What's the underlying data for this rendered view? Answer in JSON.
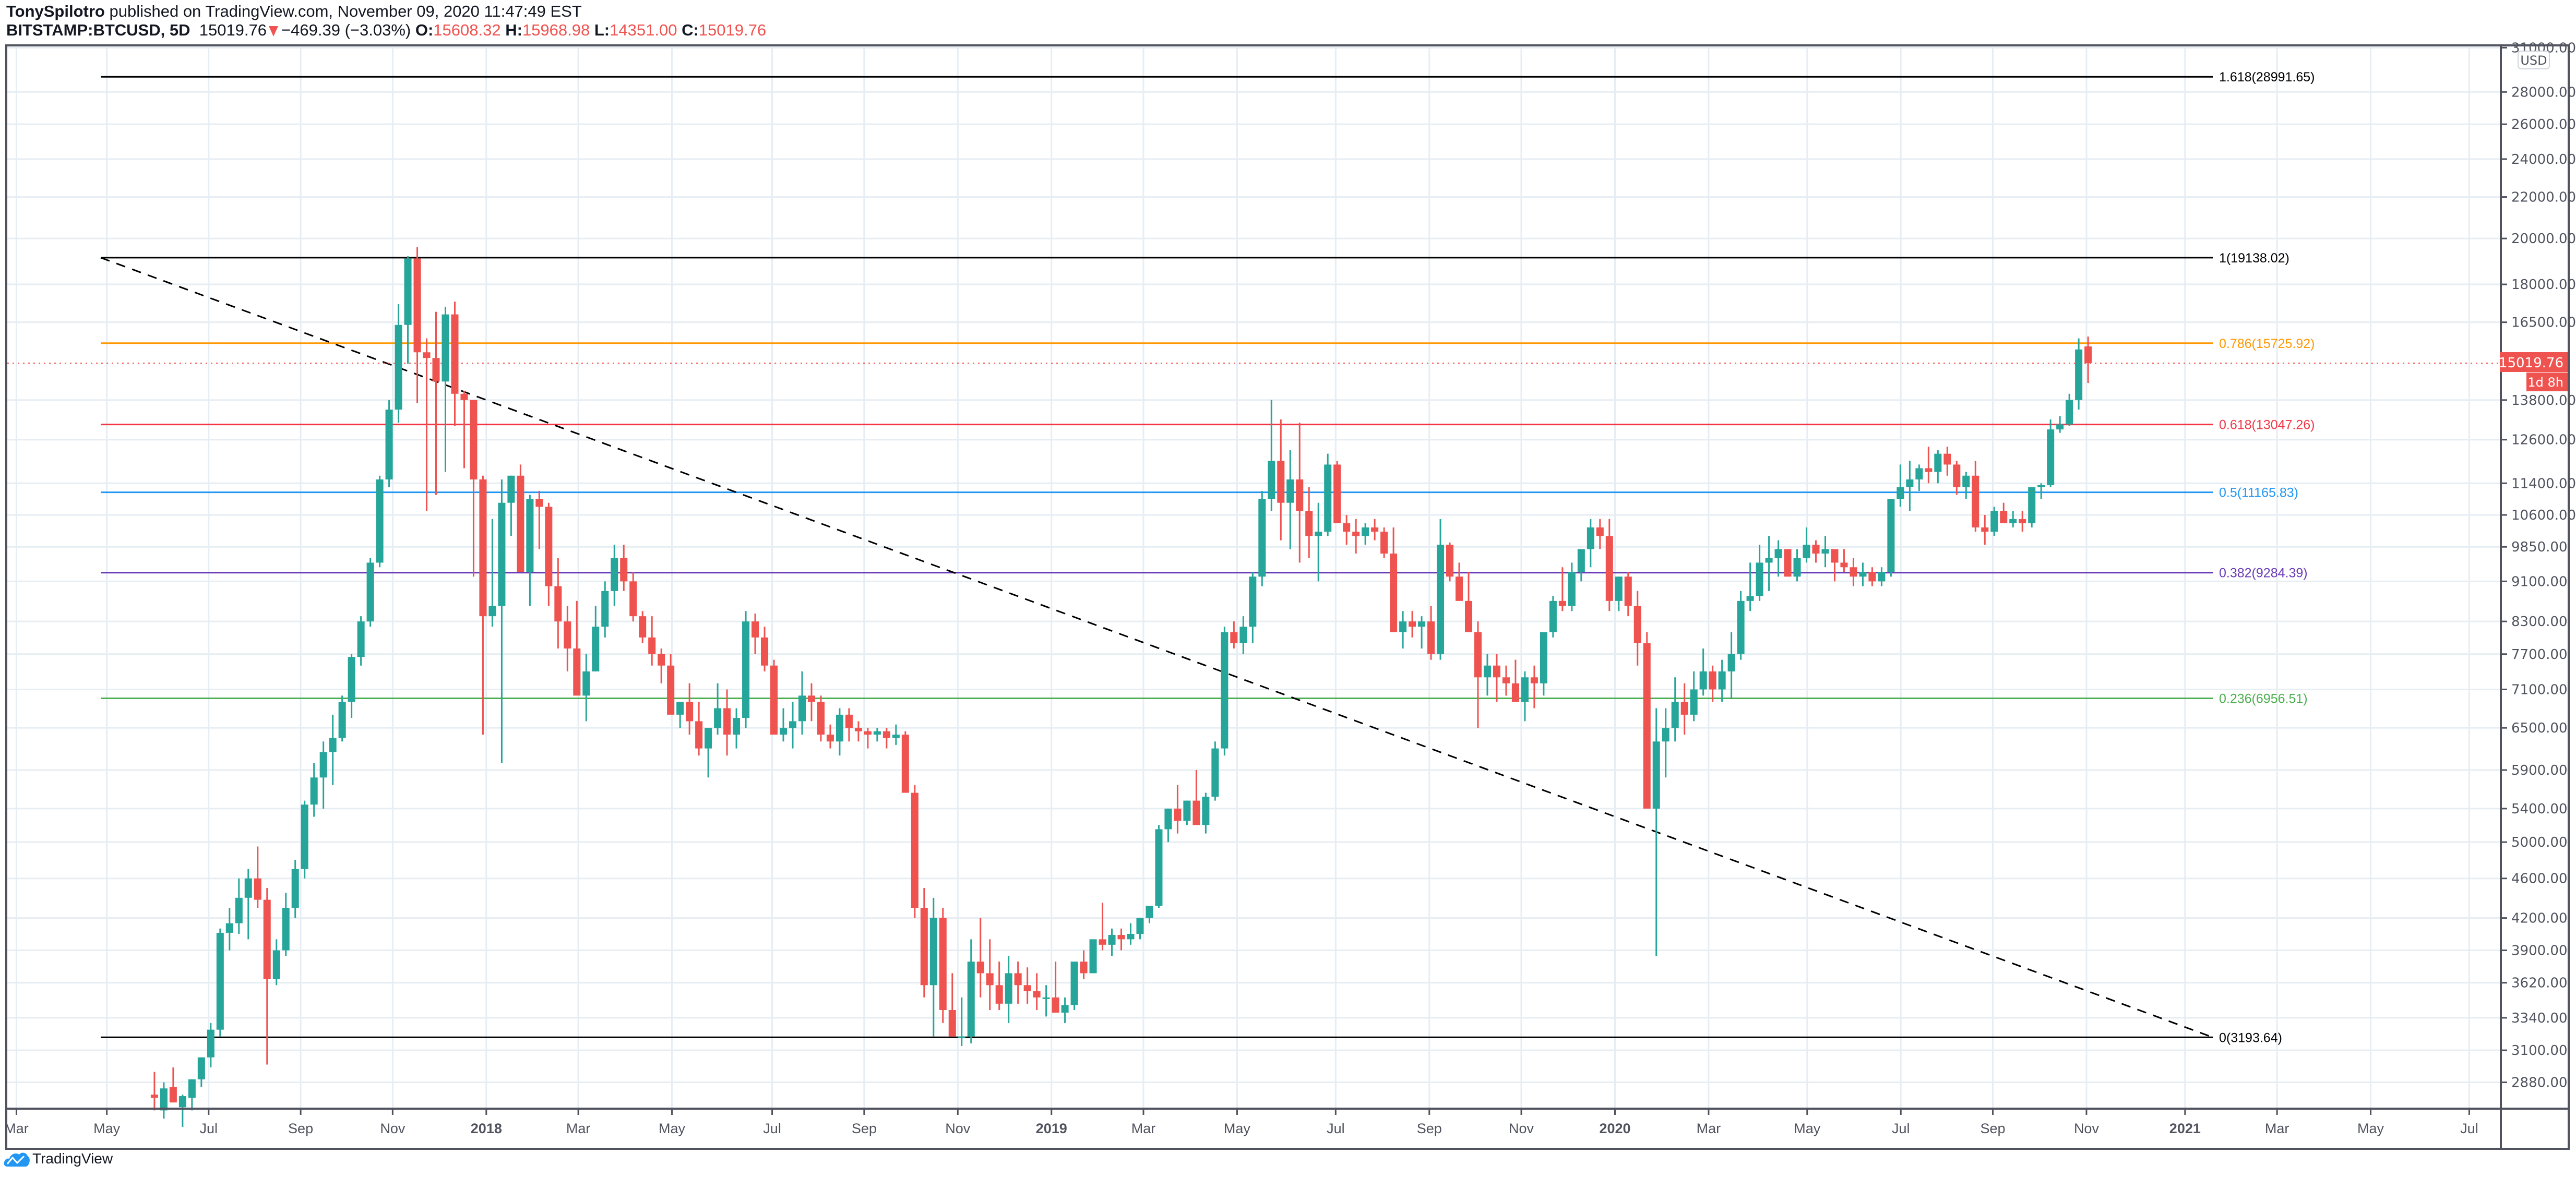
{
  "header": {
    "author": "TonySpilotro",
    "published_text": "published on TradingView.com, November 09, 2020 11:47:49 EST",
    "symbol": "BITSTAMP:BTCUSD, 5D",
    "last_price": "15019.76",
    "change": "−469.39 (−3.03%)",
    "open_label": "O:",
    "open": "15608.32",
    "high_label": "H:",
    "high": "15968.98",
    "low_label": "L:",
    "low": "14351.00",
    "close_label": "C:",
    "close": "15019.76"
  },
  "price_axis": {
    "currency": "USD",
    "current_price_tag": "15019.76",
    "countdown_tag": "1d 8h",
    "ticks": [
      "31000.00",
      "28000.00",
      "26000.00",
      "24000.00",
      "22000.00",
      "20000.00",
      "18000.00",
      "16500.00",
      "13800.00",
      "12600.00",
      "11400.00",
      "10600.00",
      "9850.00",
      "9100.00",
      "8300.00",
      "7700.00",
      "7100.00",
      "6500.00",
      "5900.00",
      "5400.00",
      "5000.00",
      "4600.00",
      "4200.00",
      "3900.00",
      "3620.00",
      "3340.00",
      "3100.00",
      "2880.00"
    ]
  },
  "time_axis": {
    "labels": [
      "Mar",
      "May",
      "Jul",
      "Sep",
      "Nov",
      "2018",
      "Mar",
      "May",
      "Jul",
      "Sep",
      "Nov",
      "2019",
      "Mar",
      "May",
      "Jul",
      "Sep",
      "Nov",
      "2020",
      "Mar",
      "May",
      "Jul",
      "Sep",
      "Nov",
      "2021",
      "Mar",
      "May",
      "Jul"
    ]
  },
  "fib_levels": [
    {
      "label": "1.618(28991.65)",
      "color": "#000000"
    },
    {
      "label": "1(19138.02)",
      "color": "#000000"
    },
    {
      "label": "0.786(15725.92)",
      "color": "#ff9800"
    },
    {
      "label": "0.618(13047.26)",
      "color": "#f23645"
    },
    {
      "label": "0.5(11165.83)",
      "color": "#2196f3"
    },
    {
      "label": "0.382(9284.39)",
      "color": "#673ab7"
    },
    {
      "label": "0.236(6956.51)",
      "color": "#4caf50"
    },
    {
      "label": "0(3193.64)",
      "color": "#000000"
    }
  ],
  "footer": {
    "brand": "TradingView"
  },
  "colors": {
    "up": "#26a69a",
    "down": "#ef5350",
    "grid": "#e6edf3",
    "axis": "#50535e",
    "brand": "#2962ff"
  },
  "chart_data": {
    "type": "candlestick",
    "title": "BITSTAMP:BTCUSD, 5D",
    "xlabel": "",
    "ylabel": "USD",
    "y_scale": "log",
    "ylim": [
      2750,
      31500
    ],
    "x_range": [
      "2017-03",
      "2021-07"
    ],
    "grid": true,
    "legend": "none",
    "last": {
      "open": 15608.32,
      "high": 15968.98,
      "low": 14351.0,
      "close": 15019.76,
      "change": -469.39,
      "change_pct": -3.03
    },
    "fibonacci_retracement": [
      {
        "level": 1.618,
        "price": 28991.65
      },
      {
        "level": 1.0,
        "price": 19138.02
      },
      {
        "level": 0.786,
        "price": 15725.92
      },
      {
        "level": 0.618,
        "price": 13047.26
      },
      {
        "level": 0.5,
        "price": 11165.83
      },
      {
        "level": 0.382,
        "price": 9284.39
      },
      {
        "level": 0.236,
        "price": 6956.51
      },
      {
        "level": 0.0,
        "price": 3193.64
      }
    ],
    "trendline": {
      "style": "dashed",
      "from": {
        "date": "2017-05",
        "price": 19138
      },
      "to": {
        "date": "2021-01",
        "price": 3193.64
      }
    },
    "candles_approx": [
      [
        2800,
        2950,
        2700,
        2780
      ],
      [
        2700,
        2880,
        2650,
        2840
      ],
      [
        2850,
        2980,
        2750,
        2750
      ],
      [
        2720,
        2800,
        2600,
        2790
      ],
      [
        2780,
        2900,
        2700,
        2900
      ],
      [
        2900,
        3050,
        2850,
        3050
      ],
      [
        3050,
        3300,
        2980,
        3250
      ],
      [
        3250,
        4100,
        3200,
        4060
      ],
      [
        4060,
        4300,
        3900,
        4150
      ],
      [
        4150,
        4600,
        4050,
        4400
      ],
      [
        4400,
        4700,
        4000,
        4600
      ],
      [
        4600,
        4950,
        4300,
        4380
      ],
      [
        4380,
        4500,
        3000,
        3650
      ],
      [
        3650,
        4000,
        3600,
        3900
      ],
      [
        3900,
        4450,
        3850,
        4300
      ],
      [
        4300,
        4800,
        4200,
        4700
      ],
      [
        4700,
        5500,
        4600,
        5450
      ],
      [
        5450,
        6000,
        5300,
        5800
      ],
      [
        5800,
        6300,
        5400,
        6150
      ],
      [
        6150,
        6700,
        5700,
        6350
      ],
      [
        6350,
        7000,
        6300,
        6900
      ],
      [
        6900,
        7700,
        6650,
        7650
      ],
      [
        7650,
        8400,
        7500,
        8300
      ],
      [
        8300,
        9600,
        8200,
        9500
      ],
      [
        9500,
        11600,
        9400,
        11500
      ],
      [
        11500,
        13800,
        11300,
        13500
      ],
      [
        13500,
        17200,
        13100,
        16400
      ],
      [
        16400,
        19200,
        15000,
        19100
      ],
      [
        19100,
        19600,
        13700,
        15400
      ],
      [
        15400,
        15900,
        10700,
        15200
      ],
      [
        15200,
        16900,
        11100,
        14400
      ],
      [
        14400,
        17100,
        11700,
        16800
      ],
      [
        16800,
        17300,
        13000,
        14000
      ],
      [
        14000,
        14100,
        11800,
        13800
      ],
      [
        13800,
        13800,
        9200,
        11500
      ],
      [
        11500,
        11600,
        6400,
        8400
      ],
      [
        8400,
        10500,
        8200,
        8600
      ],
      [
        8600,
        11500,
        6000,
        10900
      ],
      [
        10900,
        11600,
        10100,
        11600
      ],
      [
        11600,
        11900,
        9500,
        9300
      ],
      [
        9300,
        11100,
        8600,
        11000
      ],
      [
        11000,
        11200,
        9800,
        10800
      ],
      [
        10800,
        10900,
        8600,
        9000
      ],
      [
        9000,
        9600,
        7800,
        8300
      ],
      [
        8300,
        8600,
        7400,
        7800
      ],
      [
        7800,
        8700,
        7200,
        7000
      ],
      [
        7000,
        7700,
        6600,
        7400
      ],
      [
        7400,
        8600,
        7400,
        8200
      ],
      [
        8200,
        9100,
        8000,
        8900
      ],
      [
        8900,
        9900,
        8600,
        9600
      ],
      [
        9600,
        9900,
        8900,
        9100
      ],
      [
        9100,
        9300,
        8300,
        8400
      ],
      [
        8400,
        8500,
        7900,
        8000
      ],
      [
        8000,
        8400,
        7500,
        7700
      ],
      [
        7700,
        7800,
        7200,
        7500
      ],
      [
        7500,
        7700,
        6900,
        6700
      ],
      [
        6700,
        6900,
        6500,
        6900
      ],
      [
        6900,
        7200,
        6400,
        6600
      ],
      [
        6600,
        6900,
        6100,
        6200
      ],
      [
        6200,
        6500,
        5800,
        6500
      ],
      [
        6500,
        7200,
        6400,
        6800
      ],
      [
        6800,
        7100,
        6100,
        6400
      ],
      [
        6400,
        6800,
        6200,
        6650
      ],
      [
        6650,
        8500,
        6500,
        8300
      ],
      [
        8300,
        8450,
        7700,
        8000
      ],
      [
        8000,
        8200,
        7400,
        7500
      ],
      [
        7500,
        7600,
        6500,
        6400
      ],
      [
        6400,
        6800,
        6300,
        6500
      ],
      [
        6500,
        6900,
        6200,
        6600
      ],
      [
        6600,
        7400,
        6400,
        7000
      ],
      [
        7000,
        7200,
        6600,
        6900
      ],
      [
        6900,
        7000,
        6300,
        6400
      ],
      [
        6400,
        6550,
        6200,
        6300
      ],
      [
        6300,
        6800,
        6100,
        6700
      ],
      [
        6700,
        6800,
        6300,
        6500
      ],
      [
        6500,
        6600,
        6300,
        6450
      ],
      [
        6450,
        6500,
        6200,
        6400
      ],
      [
        6400,
        6500,
        6300,
        6450
      ],
      [
        6450,
        6500,
        6200,
        6350
      ],
      [
        6350,
        6550,
        6250,
        6400
      ],
      [
        6400,
        6450,
        5600,
        5600
      ],
      [
        5600,
        5700,
        4200,
        4300
      ],
      [
        4300,
        4500,
        3500,
        3600
      ],
      [
        3600,
        4400,
        3200,
        4200
      ],
      [
        4200,
        4300,
        3300,
        3400
      ],
      [
        3400,
        3700,
        3200,
        3200
      ],
      [
        3200,
        3500,
        3130,
        3200
      ],
      [
        3200,
        4000,
        3150,
        3800
      ],
      [
        3800,
        4200,
        3500,
        3700
      ],
      [
        3700,
        4000,
        3400,
        3600
      ],
      [
        3600,
        3800,
        3400,
        3450
      ],
      [
        3450,
        3850,
        3300,
        3700
      ],
      [
        3700,
        3800,
        3450,
        3600
      ],
      [
        3600,
        3750,
        3450,
        3550
      ],
      [
        3550,
        3700,
        3400,
        3500
      ],
      [
        3500,
        3600,
        3350,
        3500
      ],
      [
        3500,
        3800,
        3400,
        3380
      ],
      [
        3380,
        3500,
        3300,
        3440
      ],
      [
        3440,
        3750,
        3400,
        3800
      ],
      [
        3800,
        3900,
        3650,
        3700
      ],
      [
        3700,
        4000,
        3700,
        4000
      ],
      [
        4000,
        4350,
        3900,
        3950
      ],
      [
        3950,
        4100,
        3850,
        4040
      ],
      [
        4040,
        4100,
        3900,
        4000
      ],
      [
        4000,
        4150,
        3950,
        4050
      ],
      [
        4050,
        4200,
        4000,
        4200
      ],
      [
        4200,
        4300,
        4150,
        4320
      ],
      [
        4320,
        5200,
        4300,
        5150
      ],
      [
        5150,
        5400,
        5000,
        5400
      ],
      [
        5400,
        5700,
        5100,
        5250
      ],
      [
        5250,
        5500,
        5200,
        5500
      ],
      [
        5500,
        5900,
        5300,
        5200
      ],
      [
        5200,
        5600,
        5100,
        5550
      ],
      [
        5550,
        6300,
        5500,
        6200
      ],
      [
        6200,
        8200,
        6100,
        8100
      ],
      [
        8100,
        8300,
        7800,
        7900
      ],
      [
        7900,
        8400,
        7700,
        8200
      ],
      [
        8200,
        9300,
        7900,
        9200
      ],
      [
        9200,
        11200,
        9000,
        11000
      ],
      [
        11000,
        13800,
        10700,
        12000
      ],
      [
        12000,
        13200,
        10000,
        10900
      ],
      [
        10900,
        12300,
        9800,
        11500
      ],
      [
        11500,
        13100,
        9500,
        10700
      ],
      [
        10700,
        11300,
        9600,
        10100
      ],
      [
        10100,
        10900,
        9100,
        10200
      ],
      [
        10200,
        12200,
        10100,
        11900
      ],
      [
        11900,
        12000,
        10900,
        10400
      ],
      [
        10400,
        10600,
        9900,
        10200
      ],
      [
        10200,
        10500,
        9700,
        10100
      ],
      [
        10100,
        10400,
        9900,
        10300
      ],
      [
        10300,
        10500,
        10000,
        10200
      ],
      [
        10200,
        10300,
        9600,
        9700
      ],
      [
        9700,
        10300,
        8100,
        8100
      ],
      [
        8100,
        8500,
        7800,
        8300
      ],
      [
        8300,
        8500,
        8000,
        8200
      ],
      [
        8200,
        8400,
        7800,
        8300
      ],
      [
        8300,
        8600,
        7600,
        7700
      ],
      [
        7700,
        10500,
        7600,
        9900
      ],
      [
        9900,
        9950,
        9100,
        9200
      ],
      [
        9200,
        9500,
        8800,
        8700
      ],
      [
        8700,
        9300,
        8100,
        8100
      ],
      [
        8100,
        8300,
        6500,
        7300
      ],
      [
        7300,
        7700,
        7000,
        7500
      ],
      [
        7500,
        7700,
        6900,
        7300
      ],
      [
        7300,
        7500,
        7000,
        7200
      ],
      [
        7200,
        7600,
        6900,
        6900
      ],
      [
        6900,
        7400,
        6600,
        7300
      ],
      [
        7300,
        7500,
        6800,
        7200
      ],
      [
        7200,
        7700,
        7000,
        8100
      ],
      [
        8100,
        8800,
        8000,
        8700
      ],
      [
        8700,
        9400,
        8500,
        8600
      ],
      [
        8600,
        9500,
        8500,
        9300
      ],
      [
        9300,
        9600,
        9100,
        9800
      ],
      [
        9800,
        10500,
        9400,
        10300
      ],
      [
        10300,
        10500,
        9800,
        10100
      ],
      [
        10100,
        10500,
        8500,
        8700
      ],
      [
        8700,
        9200,
        8500,
        9200
      ],
      [
        9200,
        9300,
        8400,
        8600
      ],
      [
        8600,
        8900,
        7500,
        7900
      ],
      [
        7900,
        8100,
        5500,
        5400
      ],
      [
        5400,
        6800,
        3850,
        6300
      ],
      [
        6300,
        6800,
        5800,
        6500
      ],
      [
        6500,
        7300,
        6300,
        6900
      ],
      [
        6900,
        7200,
        6400,
        6700
      ],
      [
        6700,
        7400,
        6600,
        7100
      ],
      [
        7100,
        7800,
        7000,
        7400
      ],
      [
        7400,
        7500,
        6900,
        7100
      ],
      [
        7100,
        7600,
        6900,
        7400
      ],
      [
        7400,
        8100,
        6950,
        7700
      ],
      [
        7700,
        8900,
        7600,
        8700
      ],
      [
        8700,
        9500,
        8500,
        8800
      ],
      [
        8800,
        9900,
        8700,
        9500
      ],
      [
        9500,
        10100,
        8900,
        9600
      ],
      [
        9600,
        10000,
        9200,
        9800
      ],
      [
        9800,
        9800,
        9200,
        9200
      ],
      [
        9200,
        9800,
        9100,
        9600
      ],
      [
        9600,
        10300,
        9500,
        9900
      ],
      [
        9900,
        10000,
        9500,
        9700
      ],
      [
        9700,
        10100,
        9400,
        9800
      ],
      [
        9800,
        9800,
        9100,
        9500
      ],
      [
        9500,
        9800,
        9300,
        9400
      ],
      [
        9400,
        9600,
        9000,
        9200
      ],
      [
        9200,
        9500,
        9000,
        9300
      ],
      [
        9300,
        9400,
        9000,
        9100
      ],
      [
        9100,
        9400,
        9000,
        9300
      ],
      [
        9300,
        10000,
        9200,
        11000
      ],
      [
        11000,
        11900,
        10800,
        11300
      ],
      [
        11300,
        12000,
        10700,
        11500
      ],
      [
        11500,
        11900,
        11200,
        11800
      ],
      [
        11800,
        12400,
        11400,
        11700
      ],
      [
        11700,
        12300,
        11400,
        12200
      ],
      [
        12200,
        12400,
        11600,
        11900
      ],
      [
        11900,
        12000,
        11100,
        11300
      ],
      [
        11300,
        11700,
        11000,
        11600
      ],
      [
        11600,
        12000,
        10200,
        10300
      ],
      [
        10300,
        10600,
        9900,
        10200
      ],
      [
        10200,
        10800,
        10100,
        10700
      ],
      [
        10700,
        10900,
        10400,
        10400
      ],
      [
        10400,
        10700,
        10300,
        10500
      ],
      [
        10500,
        10700,
        10200,
        10400
      ],
      [
        10400,
        11300,
        10300,
        11300
      ],
      [
        11300,
        11400,
        11000,
        11350
      ],
      [
        11350,
        13200,
        11300,
        12900
      ],
      [
        12900,
        13300,
        12800,
        13050
      ],
      [
        13050,
        14000,
        13000,
        13800
      ],
      [
        13800,
        15900,
        13500,
        15500
      ],
      [
        15608.32,
        15968.98,
        14351.0,
        15019.76
      ]
    ]
  }
}
